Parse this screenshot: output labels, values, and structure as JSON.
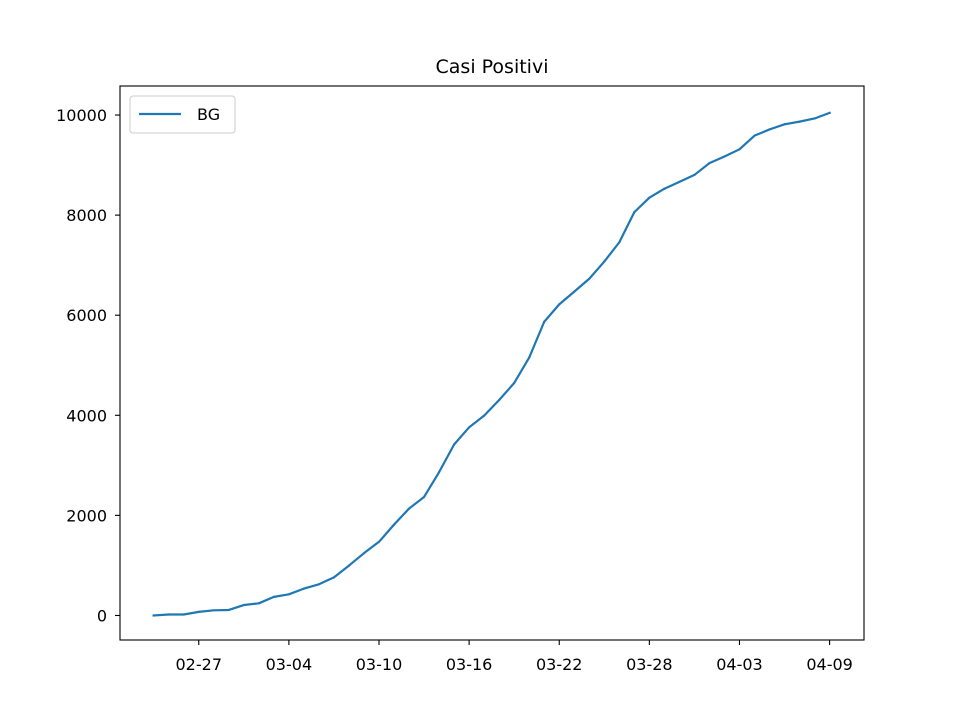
{
  "chart_data": {
    "type": "line",
    "title": "Casi Positivi",
    "xlabel": "",
    "ylabel": "",
    "x": [
      "02-24",
      "02-25",
      "02-26",
      "02-27",
      "02-28",
      "02-29",
      "03-01",
      "03-02",
      "03-03",
      "03-04",
      "03-05",
      "03-06",
      "03-07",
      "03-08",
      "03-09",
      "03-10",
      "03-11",
      "03-12",
      "03-13",
      "03-14",
      "03-15",
      "03-16",
      "03-17",
      "03-18",
      "03-19",
      "03-20",
      "03-21",
      "03-22",
      "03-23",
      "03-24",
      "03-25",
      "03-26",
      "03-27",
      "03-28",
      "03-29",
      "03-30",
      "03-31",
      "04-01",
      "04-02",
      "04-03",
      "04-04",
      "04-05",
      "04-06",
      "04-07",
      "04-08",
      "04-09"
    ],
    "x_ticks": [
      "02-27",
      "03-04",
      "03-10",
      "03-16",
      "03-22",
      "03-28",
      "04-03",
      "04-09"
    ],
    "y_ticks": [
      0,
      2000,
      4000,
      6000,
      8000,
      10000
    ],
    "ylim": [
      -490,
      10580
    ],
    "grid": false,
    "legend_position": "upper-left",
    "series": [
      {
        "name": "BG",
        "color": "#1f77b4",
        "values": [
          0,
          20,
          20,
          72,
          103,
          110,
          209,
          243,
          372,
          423,
          537,
          623,
          761,
          997,
          1245,
          1472,
          1815,
          2136,
          2368,
          2864,
          3416,
          3760,
          3993,
          4305,
          4645,
          5154,
          5869,
          6216,
          6471,
          6728,
          7072,
          7458,
          8060,
          8349,
          8527,
          8664,
          8803,
          9039,
          9171,
          9315,
          9588,
          9712,
          9815,
          9868,
          9931,
          10043
        ]
      }
    ]
  }
}
